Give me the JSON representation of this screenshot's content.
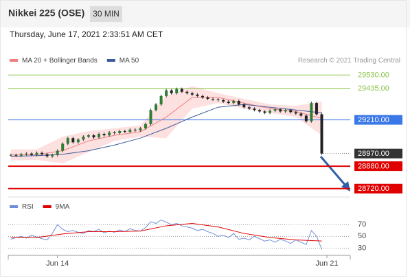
{
  "header": {
    "title": "Nikkei 225 (OSE)",
    "interval": "30 MIN",
    "timestamp": "Thursday, June 17, 2021 2:33:51 AM CET"
  },
  "chart_data": [
    {
      "type": "candlestick",
      "credit": "Research © 2021 Trading Central",
      "up_color": "#2e7d32",
      "down_color": "#222222",
      "ylim": [
        28670,
        29575
      ],
      "values": [
        28960,
        28955,
        28965,
        28970,
        28960,
        28975,
        28965,
        28950,
        28960,
        28990,
        29040,
        29080,
        29050,
        29070,
        29090,
        29100,
        29085,
        29110,
        29100,
        29120,
        29115,
        29130,
        29125,
        29140,
        29135,
        29150,
        29180,
        29280,
        29320,
        29380,
        29420,
        29400,
        29430,
        29410,
        29400,
        29390,
        29380,
        29370,
        29360,
        29355,
        29350,
        29340,
        29330,
        29345,
        29320,
        29300,
        29290,
        29280,
        29270,
        29260,
        29275,
        29285,
        29270,
        29280,
        29265,
        29255,
        29240,
        29200,
        29330,
        29250,
        28970,
        null,
        null,
        null,
        null,
        null
      ],
      "series": [
        {
          "name": "MA 20 + Bollinger Bands",
          "color": "#f08080",
          "band_color": "#fde0e0",
          "x": [
            0,
            5,
            10,
            15,
            20,
            25,
            30,
            35,
            40,
            45,
            50,
            55,
            60
          ],
          "values": [
            28960,
            28962,
            28990,
            29060,
            29100,
            29125,
            29230,
            29370,
            29370,
            29330,
            29290,
            29270,
            29220
          ],
          "upper": [
            29000,
            29000,
            29090,
            29130,
            29150,
            29170,
            29380,
            29450,
            29400,
            29360,
            29320,
            29310,
            29340
          ],
          "lower": [
            28920,
            28925,
            28900,
            28980,
            29060,
            29090,
            29080,
            29290,
            29330,
            29290,
            29260,
            29230,
            29100
          ]
        },
        {
          "name": "MA 50",
          "color": "#3a5a9c",
          "x": [
            0,
            5,
            10,
            15,
            20,
            25,
            30,
            35,
            40,
            45,
            50,
            55,
            60
          ],
          "values": [
            28950,
            28955,
            28965,
            28990,
            29030,
            29080,
            29150,
            29230,
            29300,
            29320,
            29300,
            29280,
            29260
          ]
        }
      ],
      "levels": [
        {
          "value": 29530,
          "label": "29530.00",
          "color": "#8bc34a",
          "boxed": false
        },
        {
          "value": 29435,
          "label": "29435.00",
          "color": "#8bc34a",
          "boxed": false
        },
        {
          "value": 29210,
          "label": "29210.00",
          "color": "#3b78e7",
          "boxed": true
        },
        {
          "value": 28970,
          "label": "28970.00",
          "color": "#333333",
          "boxed": true,
          "dotted": true
        },
        {
          "value": 28880,
          "label": "28880.00",
          "color": "#e00000",
          "boxed": true
        },
        {
          "value": 28720,
          "label": "28720.00",
          "color": "#e00000",
          "boxed": true
        }
      ]
    },
    {
      "type": "line",
      "ylim": [
        20,
        96
      ],
      "yticks": [
        70,
        50,
        30
      ],
      "grid": true,
      "categories": [
        null,
        null,
        null,
        null,
        null,
        null,
        null,
        null,
        null,
        "Jun 14",
        null,
        null,
        null,
        null,
        null,
        null,
        null,
        null,
        null,
        null,
        null,
        null,
        null,
        null,
        null,
        null,
        null,
        null,
        null,
        null,
        null,
        null,
        null,
        null,
        null,
        null,
        null,
        null,
        null,
        null,
        null,
        null,
        null,
        null,
        null,
        null,
        null,
        null,
        null,
        null,
        null,
        null,
        null,
        null,
        null,
        null,
        null,
        null,
        null,
        null,
        null,
        "Jun 21",
        null,
        null,
        null,
        null
      ],
      "series": [
        {
          "name": "RSI",
          "color": "#6f8fd8",
          "values": [
            45,
            48,
            50,
            47,
            52,
            49,
            46,
            44,
            55,
            70,
            62,
            58,
            60,
            57,
            55,
            60,
            58,
            62,
            56,
            59,
            57,
            61,
            58,
            63,
            60,
            59,
            65,
            75,
            72,
            78,
            74,
            70,
            72,
            68,
            66,
            64,
            60,
            62,
            58,
            55,
            50,
            52,
            48,
            55,
            45,
            47,
            44,
            50,
            46,
            42,
            44,
            40,
            45,
            42,
            38,
            44,
            40,
            36,
            60,
            50,
            28,
            null,
            null,
            null,
            null,
            null
          ]
        },
        {
          "name": "9MA",
          "color": "#e00000",
          "x": [
            0,
            5,
            10,
            15,
            20,
            25,
            30,
            35,
            40,
            45,
            50,
            55,
            60
          ],
          "values": [
            48,
            48,
            54,
            58,
            58,
            59,
            68,
            72,
            66,
            55,
            48,
            44,
            42
          ]
        }
      ]
    }
  ]
}
